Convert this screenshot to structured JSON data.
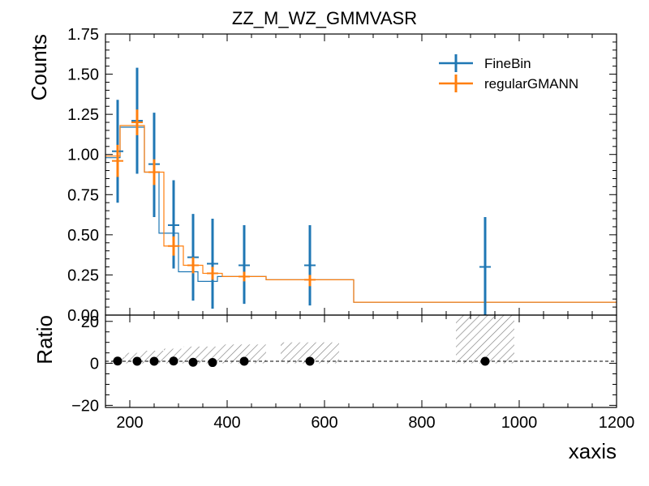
{
  "chart_data": {
    "type": "histogram_errorbar_with_ratio",
    "title": "ZZ_M_WZ_GMMVASR",
    "xlabel": "xaxis",
    "ylabel": "Counts",
    "ratio_ylabel": "Ratio",
    "xlim": [
      150,
      1200
    ],
    "ylim": [
      0,
      1.75
    ],
    "ratio_ylim": [
      -21,
      23
    ],
    "x_ticks": [
      200,
      400,
      600,
      800,
      1000,
      1200
    ],
    "x_tick_labels": [
      "200",
      "400",
      "600",
      "800",
      "1000",
      "1200"
    ],
    "y_ticks": [
      0,
      0.25,
      0.5,
      0.75,
      1.0,
      1.25,
      1.5,
      1.75
    ],
    "y_tick_labels": [
      "0.00",
      "0.25",
      "0.50",
      "0.75",
      "1.00",
      "1.25",
      "1.50",
      "1.75"
    ],
    "ratio_ticks": [
      -20,
      0,
      20
    ],
    "ratio_tick_labels": [
      "−20",
      "0",
      "20"
    ],
    "legend_position": "top-right",
    "grid": false,
    "series": [
      {
        "name": "FineBin",
        "color": "#1f77b4",
        "edges": [
          150,
          180,
          230,
          260,
          300,
          340,
          380,
          480,
          660,
          1200
        ],
        "step_values": [
          0.98,
          1.17,
          0.89,
          0.51,
          0.27,
          0.21,
          0.24,
          0.22,
          0.08
        ],
        "points": [
          {
            "x": 175,
            "y": 1.02,
            "yerr_low": 0.32,
            "yerr_high": 0.32
          },
          {
            "x": 215,
            "y": 1.21,
            "yerr_low": 0.33,
            "yerr_high": 0.33
          },
          {
            "x": 250,
            "y": 0.94,
            "yerr_low": 0.33,
            "yerr_high": 0.32
          },
          {
            "x": 290,
            "y": 0.56,
            "yerr_low": 0.27,
            "yerr_high": 0.28
          },
          {
            "x": 330,
            "y": 0.36,
            "yerr_low": 0.27,
            "yerr_high": 0.27
          },
          {
            "x": 370,
            "y": 0.32,
            "yerr_low": 0.28,
            "yerr_high": 0.28
          },
          {
            "x": 435,
            "y": 0.31,
            "yerr_low": 0.24,
            "yerr_high": 0.25
          },
          {
            "x": 570,
            "y": 0.31,
            "yerr_low": 0.25,
            "yerr_high": 0.25
          },
          {
            "x": 930,
            "y": 0.3,
            "yerr_low": 0.31,
            "yerr_high": 0.31
          }
        ]
      },
      {
        "name": "regularGMANN",
        "color": "#ff7f0e",
        "edges": [
          150,
          180,
          230,
          270,
          310,
          350,
          390,
          480,
          660,
          1200
        ],
        "step_values": [
          0.99,
          1.18,
          0.89,
          0.43,
          0.31,
          0.26,
          0.24,
          0.22,
          0.08
        ],
        "points": [
          {
            "x": 175,
            "y": 0.96,
            "yerr_low": 0.1,
            "yerr_high": 0.1
          },
          {
            "x": 215,
            "y": 1.2,
            "yerr_low": 0.08,
            "yerr_high": 0.08
          },
          {
            "x": 250,
            "y": 0.89,
            "yerr_low": 0.08,
            "yerr_high": 0.08
          },
          {
            "x": 290,
            "y": 0.43,
            "yerr_low": 0.06,
            "yerr_high": 0.06
          },
          {
            "x": 330,
            "y": 0.31,
            "yerr_low": 0.05,
            "yerr_high": 0.05
          },
          {
            "x": 370,
            "y": 0.26,
            "yerr_low": 0.04,
            "yerr_high": 0.04
          },
          {
            "x": 435,
            "y": 0.24,
            "yerr_low": 0.03,
            "yerr_high": 0.03
          },
          {
            "x": 570,
            "y": 0.22,
            "yerr_low": 0.04,
            "yerr_high": 0.03
          }
        ]
      }
    ],
    "ratio": {
      "reference_line": 1,
      "points": [
        {
          "x": 175,
          "y": 1.1
        },
        {
          "x": 215,
          "y": 1.0
        },
        {
          "x": 250,
          "y": 1.0
        },
        {
          "x": 290,
          "y": 1.1
        },
        {
          "x": 330,
          "y": 0.5
        },
        {
          "x": 370,
          "y": 0.4
        },
        {
          "x": 435,
          "y": 1.0
        },
        {
          "x": 570,
          "y": 1.0
        },
        {
          "x": 930,
          "y": 1.0
        }
      ],
      "uncertainty_bands": [
        {
          "x0": 160,
          "x1": 190,
          "y0": 0,
          "y1": 3
        },
        {
          "x0": 190,
          "x1": 230,
          "y0": 0,
          "y1": 5
        },
        {
          "x0": 230,
          "x1": 270,
          "y0": 0,
          "y1": 6
        },
        {
          "x0": 270,
          "x1": 310,
          "y0": 0,
          "y1": 7
        },
        {
          "x0": 310,
          "x1": 350,
          "y0": 0,
          "y1": 8
        },
        {
          "x0": 350,
          "x1": 390,
          "y0": 0,
          "y1": 8
        },
        {
          "x0": 390,
          "x1": 480,
          "y0": 0,
          "y1": 9
        },
        {
          "x0": 510,
          "x1": 630,
          "y0": 0,
          "y1": 10
        },
        {
          "x0": 870,
          "x1": 990,
          "y0": 0,
          "y1": 23
        }
      ]
    }
  }
}
